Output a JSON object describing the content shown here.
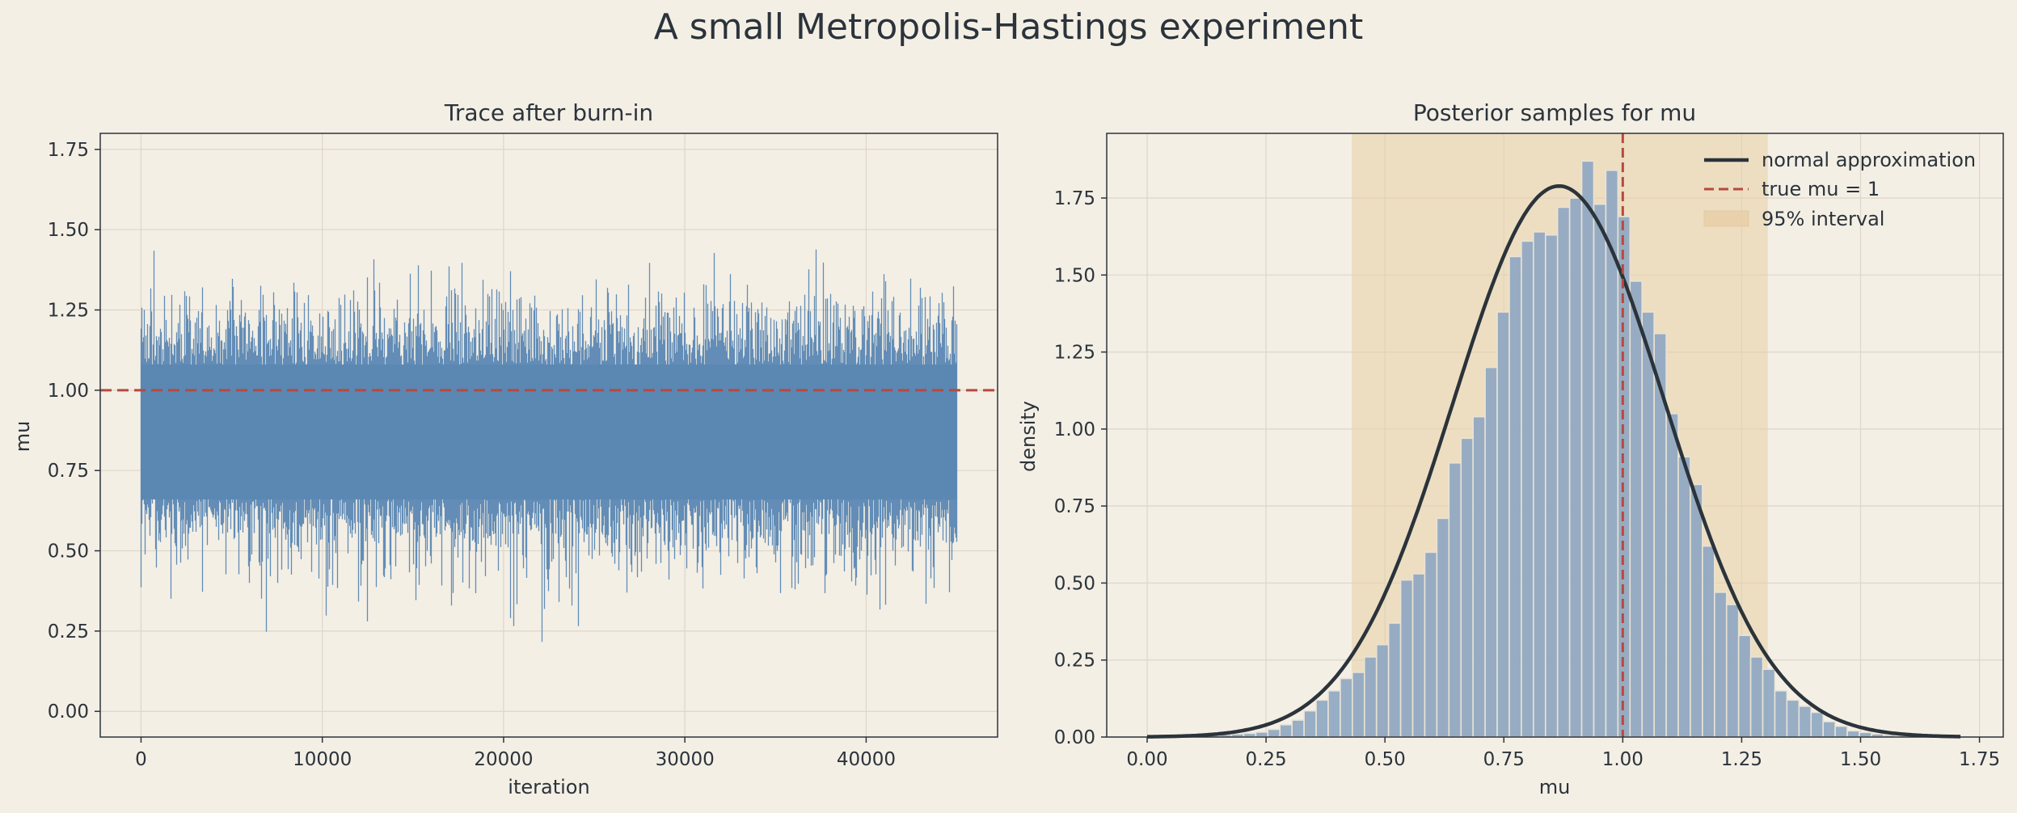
{
  "figure": {
    "title": "A small Metropolis-Hastings experiment"
  },
  "colors": {
    "background": "#f4efe5",
    "trace": "#5b87b3",
    "true_line": "#b5493f",
    "hist_bar": "#8ea7c2",
    "normal_curve": "#2b333b",
    "interval_band": "#e8cfa6",
    "grid": "#ddd6c8",
    "text": "#2b333b"
  },
  "chart_data": [
    {
      "type": "line",
      "title": "Trace after burn-in",
      "xlabel": "iteration",
      "ylabel": "mu",
      "xlim": [
        -2250,
        47250
      ],
      "ylim": [
        -0.08,
        1.8
      ],
      "x_ticks": [
        0,
        10000,
        20000,
        30000,
        40000
      ],
      "x_tick_labels": [
        "0",
        "10000",
        "20000",
        "30000",
        "40000"
      ],
      "y_ticks": [
        0.0,
        0.25,
        0.5,
        0.75,
        1.0,
        1.25,
        1.5,
        1.75
      ],
      "y_tick_labels": [
        "0.00",
        "0.25",
        "0.50",
        "0.75",
        "1.00",
        "1.25",
        "1.50",
        "1.75"
      ],
      "grid": true,
      "series": [
        {
          "iterations": 45000,
          "approx_mean": 0.87,
          "approx_sd": 0.22,
          "observed_min": 0.0,
          "observed_max": 1.71
        }
      ],
      "hlines": [
        {
          "y": 1.0,
          "style": "dashed"
        }
      ]
    },
    {
      "type": "bar",
      "title": "Posterior samples for mu",
      "xlabel": "mu",
      "ylabel": "density",
      "xlim": [
        -0.085,
        1.8
      ],
      "ylim": [
        0,
        1.96
      ],
      "x_ticks": [
        0.0,
        0.25,
        0.5,
        0.75,
        1.0,
        1.25,
        1.5,
        1.75
      ],
      "x_tick_labels": [
        "0.00",
        "0.25",
        "0.50",
        "0.75",
        "1.00",
        "1.25",
        "1.50",
        "1.75"
      ],
      "y_ticks": [
        0.0,
        0.25,
        0.5,
        0.75,
        1.0,
        1.25,
        1.5,
        1.75
      ],
      "y_tick_labels": [
        "0.00",
        "0.25",
        "0.50",
        "0.75",
        "1.00",
        "1.25",
        "1.50",
        "1.75"
      ],
      "grid": true,
      "legend_position": "top-right",
      "histogram": {
        "bin_start": 0.0,
        "bin_width": 0.02538,
        "values": [
          0.003,
          0.003,
          0.003,
          0.004,
          0.004,
          0.005,
          0.008,
          0.01,
          0.012,
          0.016,
          0.025,
          0.04,
          0.055,
          0.085,
          0.12,
          0.15,
          0.19,
          0.21,
          0.26,
          0.3,
          0.37,
          0.51,
          0.53,
          0.6,
          0.71,
          0.89,
          0.97,
          1.04,
          1.2,
          1.38,
          1.56,
          1.61,
          1.64,
          1.63,
          1.72,
          1.75,
          1.87,
          1.73,
          1.84,
          1.69,
          1.48,
          1.38,
          1.31,
          1.05,
          0.91,
          0.82,
          0.62,
          0.47,
          0.43,
          0.33,
          0.26,
          0.22,
          0.15,
          0.12,
          0.1,
          0.08,
          0.05,
          0.035,
          0.02,
          0.015,
          0.01,
          0.006,
          0.004,
          0.002,
          0.001,
          0.001,
          0.001,
          0.001
        ]
      },
      "normal_approximation": {
        "mean": 0.866,
        "sd": 0.223,
        "x_range": [
          0.0,
          1.71
        ]
      },
      "true_value_line": {
        "x": 1.0
      },
      "interval": {
        "low": 0.43,
        "high": 1.305
      },
      "legend": {
        "normal": "normal approximation",
        "true": "true mu = 1",
        "interval": "95% interval"
      }
    }
  ]
}
